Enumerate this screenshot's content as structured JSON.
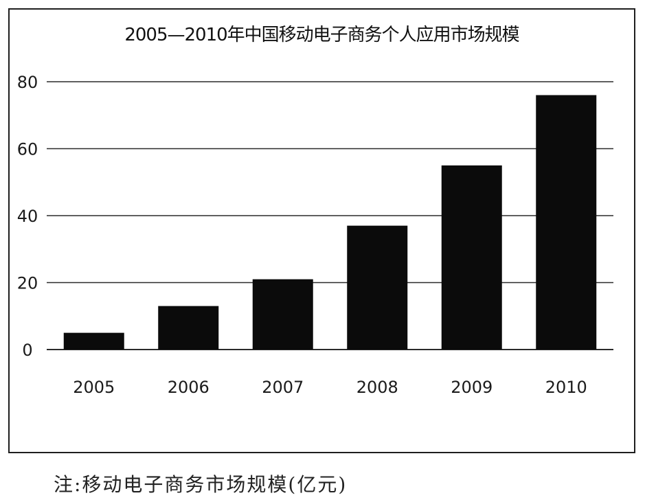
{
  "chart_data": {
    "type": "bar",
    "title": "2005—2010年中国移动电子商务个人应用市场规模",
    "categories": [
      "2005",
      "2006",
      "2007",
      "2008",
      "2009",
      "2010"
    ],
    "values": [
      5,
      13,
      21,
      37,
      55,
      76
    ],
    "ylim": [
      0,
      80
    ],
    "yticks": [
      0,
      20,
      40,
      60,
      80
    ],
    "xlabel": "",
    "ylabel": "",
    "grid": true,
    "legend": "none",
    "bar_color": "#0b0b0b"
  },
  "note": "注:移动电子商务市场规模(亿元)"
}
